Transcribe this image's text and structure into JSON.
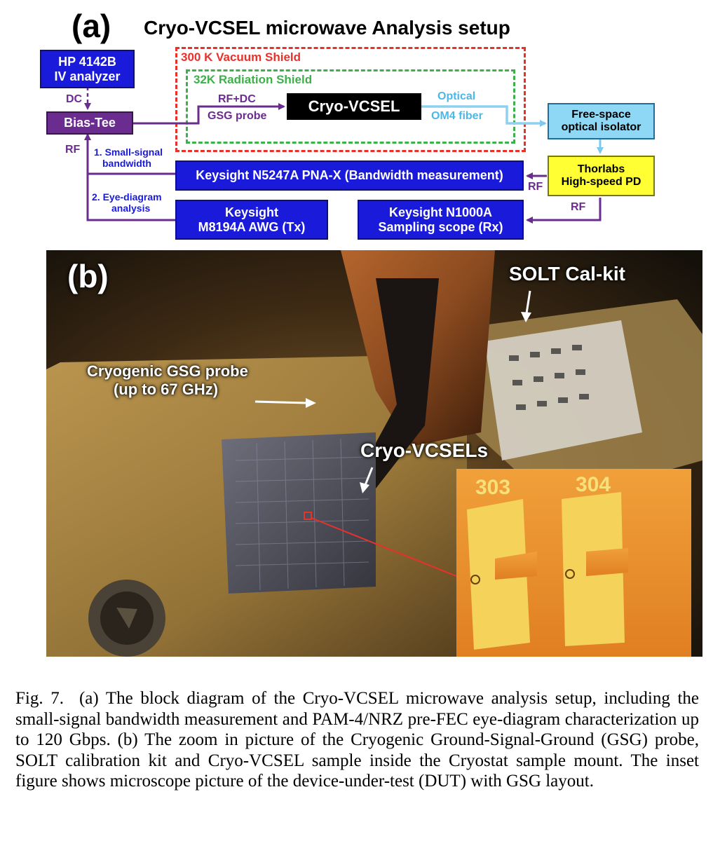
{
  "panel_a": {
    "label": "(a)",
    "title": "Cryo-VCSEL microwave Analysis setup",
    "shield_300k": "300 K Vacuum Shield",
    "shield_32k": "32K Radiation Shield",
    "hp_line1": "HP 4142B",
    "hp_line2": "IV analyzer",
    "dc_label": "DC",
    "bias_tee": "Bias-Tee",
    "rf_dc_label": "RF+DC",
    "gsg_label": "GSG probe",
    "cryo_vcsel": "Cryo-VCSEL",
    "optical_label": "Optical",
    "om4_label": "OM4 fiber",
    "isolator_line1": "Free-space",
    "isolator_line2": "optical isolator",
    "pd_line1": "Thorlabs",
    "pd_line2": "High-speed PD",
    "rf_left": "RF",
    "small_signal_line1": "1. Small-signal",
    "small_signal_line2": "bandwidth",
    "eye_line1": "2. Eye-diagram",
    "eye_line2": "analysis",
    "pna": "Keysight N5247A PNA-X (Bandwidth measurement)",
    "rf_pd_pna": "RF",
    "rf_pd_scope": "RF",
    "awg_line1": "Keysight",
    "awg_line2": "M8194A AWG (Tx)",
    "scope_line1": "Keysight N1000A",
    "scope_line2": "Sampling scope (Rx)"
  },
  "panel_b": {
    "label": "(b)",
    "solt": "SOLT Cal-kit",
    "probe_line1": "Cryogenic GSG probe",
    "probe_line2": "(up to 67 GHz)",
    "vcsels": "Cryo-VCSELs",
    "inset_label_1": "303",
    "inset_label_2": "304"
  },
  "caption": {
    "fig": "Fig. 7.",
    "text": "(a) The block diagram of the Cryo-VCSEL microwave analysis setup, including the small-signal bandwidth measurement and PAM-4/NRZ pre-FEC eye-diagram characterization up to 120 Gbps. (b) The zoom in picture of the Cryogenic Ground-Signal-Ground (GSG) probe, SOLT calibration kit and Cryo-VCSEL sample inside the Cryostat sample mount. The inset figure shows microscope picture of the device-under-test (DUT) with GSG layout."
  },
  "colors": {
    "blue_box": "#1a1adb",
    "purple": "#6a2c8e",
    "shield_red": "#e8312b",
    "shield_green": "#3db04a",
    "cyan": "#8fd8f5",
    "yellow": "#ffff33"
  }
}
